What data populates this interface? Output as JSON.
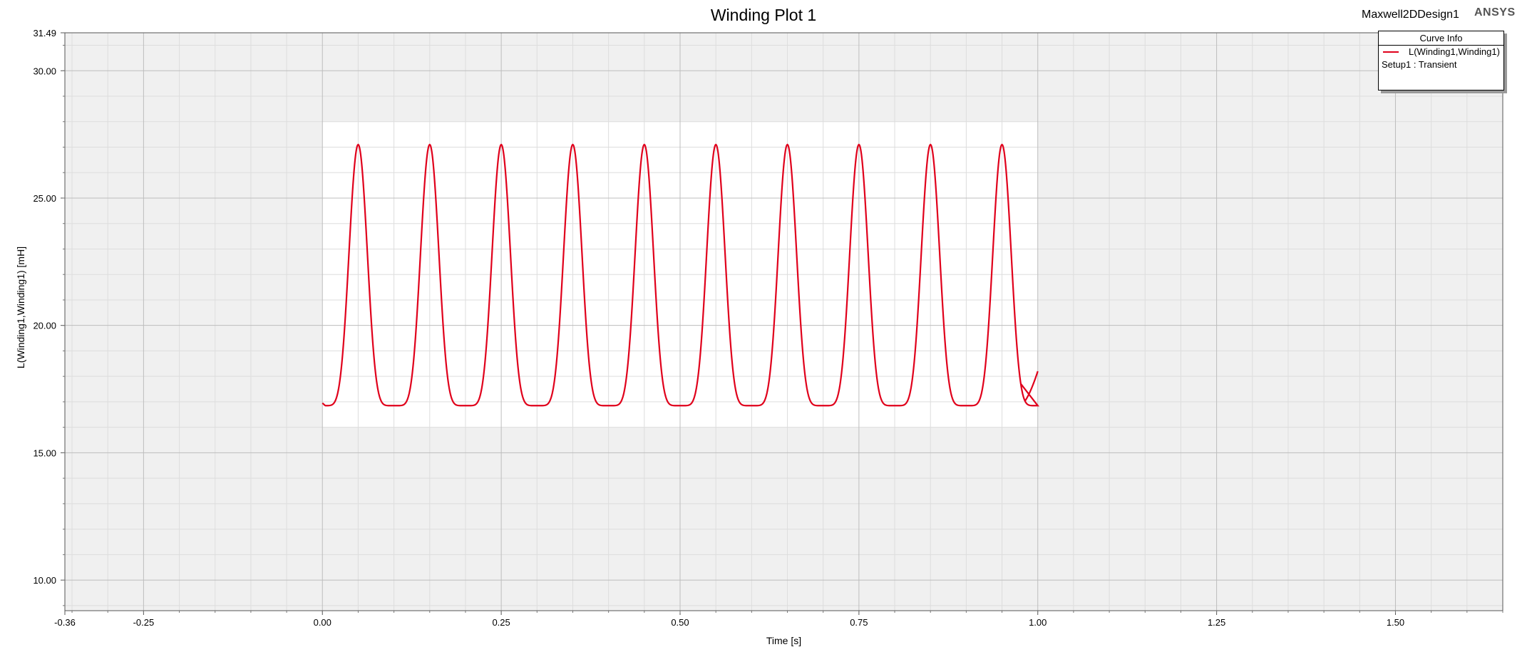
{
  "header": {
    "title": "Winding Plot 1",
    "design_name": "Maxwell2DDesign1",
    "brand": "ANSYS"
  },
  "legend": {
    "title": "Curve Info",
    "series_label": "L(Winding1,Winding1)",
    "setup_label": "Setup1 : Transient"
  },
  "colors": {
    "series": "#e0001b",
    "plot_bg": "#f0f0f0",
    "data_region_bg": "#ffffff"
  },
  "chart_data": {
    "type": "line",
    "title": "Winding Plot 1",
    "xlabel": "Time [s]",
    "ylabel": "L(Winding1,Winding1) [mH]",
    "xlim": [
      -0.36,
      1.65
    ],
    "ylim": [
      8.8,
      31.49
    ],
    "x_ticks": [
      "-0.36",
      "-0.25",
      "0.00",
      "0.25",
      "0.50",
      "0.75",
      "1.00",
      "1.25",
      "1.50"
    ],
    "x_tick_values": [
      -0.36,
      -0.25,
      0.0,
      0.25,
      0.5,
      0.75,
      1.0,
      1.25,
      1.5
    ],
    "y_ticks": [
      "31.49",
      "30.00",
      "25.00",
      "20.00",
      "15.00",
      "10.00"
    ],
    "y_tick_values": [
      31.49,
      30.0,
      25.0,
      20.0,
      15.0,
      10.0
    ],
    "grid": true,
    "data_region": {
      "x": [
        0.0,
        1.0
      ],
      "y": [
        16.0,
        28.0
      ]
    },
    "series": [
      {
        "name": "L(Winding1,Winding1)",
        "period": 0.1,
        "peak_times": [
          0.05,
          0.15,
          0.25,
          0.35,
          0.45,
          0.55,
          0.65,
          0.75,
          0.85,
          0.95
        ],
        "min_times": [
          0.0,
          0.1,
          0.2,
          0.3,
          0.4,
          0.5,
          0.6,
          0.7,
          0.8,
          0.9,
          1.0
        ],
        "y_peak": 27.1,
        "y_min": 16.85,
        "y_start": 16.95,
        "y_end": 18.2
      }
    ]
  }
}
